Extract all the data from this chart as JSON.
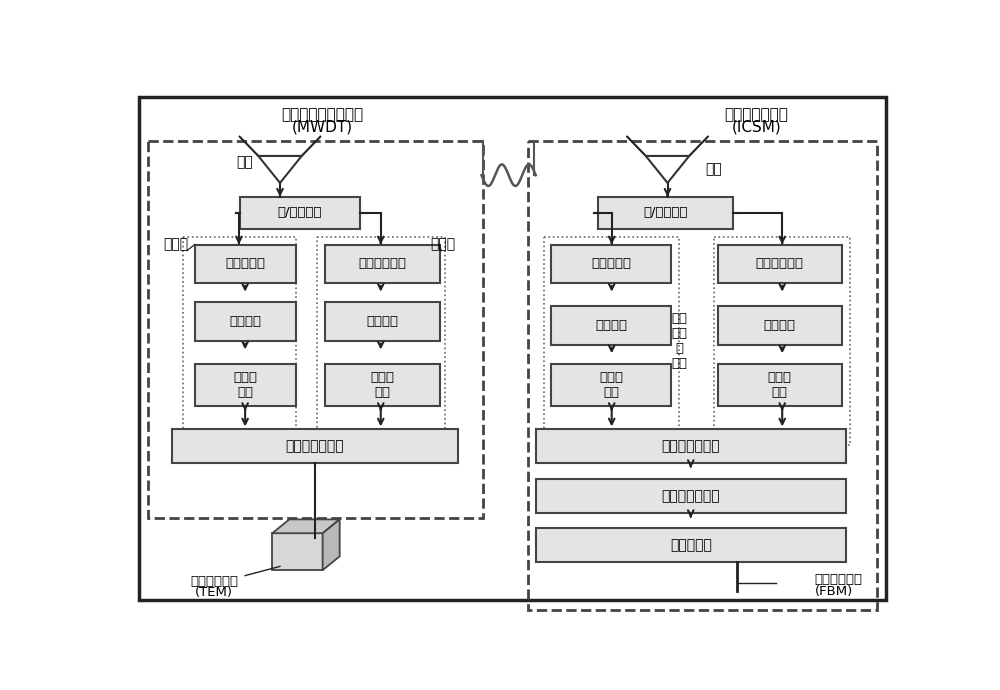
{
  "bg_color": "#ffffff",
  "mwdt_label": "毫米波数据传输模块",
  "mwdt_sub": "(MWDT)",
  "icsm_label": "智能控制站模块",
  "icsm_sub": "(ICSM)",
  "antenna_label": "天线",
  "tx_label": "发射机",
  "rx_label": "接收机",
  "trx_ctrl": "发/收控制器",
  "pa_label": "功率放大器",
  "lna_label": "低噪声放大器",
  "upconv_label": "上变频器",
  "downconv_label": "下变频器",
  "encode_label": "编码、\n调制",
  "decode_label": "解调、\n解码",
  "baseband_label": "基带及接口设备",
  "tem_label": "终端设备模块",
  "tem_sub": "(TEM)",
  "comm_ctrl_label": "通信控制子模块",
  "gateway_label": "网关子模块",
  "fbm_label": "光纤主干模块",
  "fbm_sub": "(FBM)",
  "data_trans_label": "数据\n传输\n子\n模块"
}
